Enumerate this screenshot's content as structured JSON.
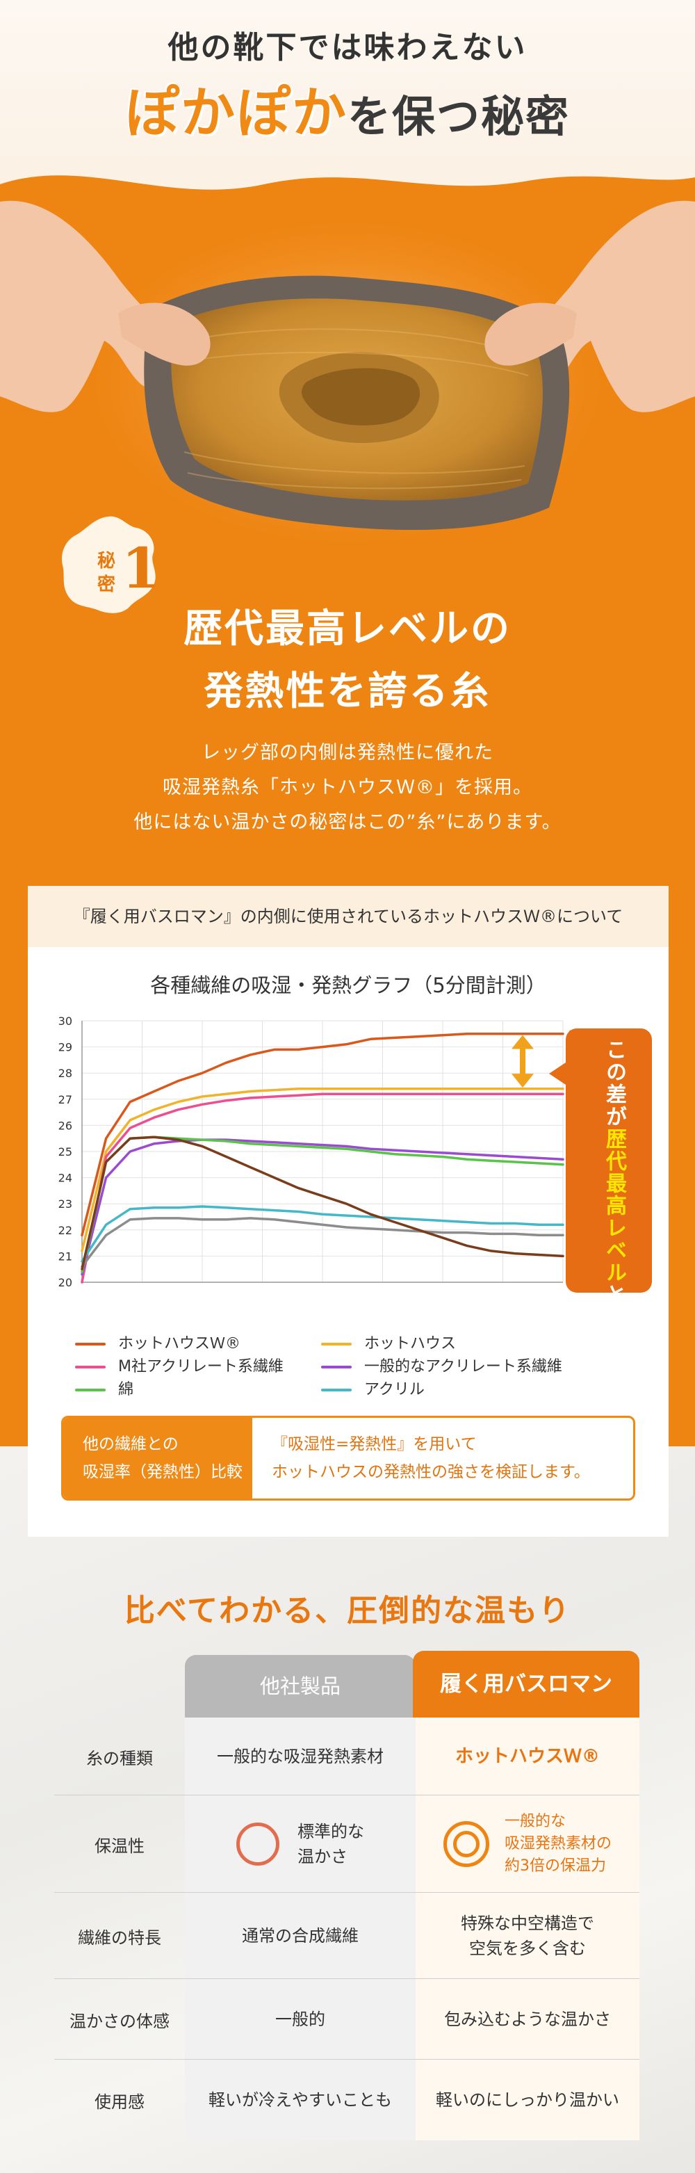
{
  "hero": {
    "subtitle": "他の靴下では味わえない",
    "title_accent": "ぽかぽか",
    "title_rest": "を保つ秘密"
  },
  "secret": {
    "label_line1": "秘",
    "label_line2": "密",
    "number": "1",
    "title_line1": "歴代最高レベルの",
    "title_line2": "発熱性を誇る糸",
    "desc_line1": "レッグ部の内側は発熱性に優れた",
    "desc_line2": "吸湿発熱糸「ホットハウスＷ®」を採用。",
    "desc_line3": "他にはない温かさの秘密はこの”糸”にあります。"
  },
  "card": {
    "header": "『履く用バスロマン』の内側に使用されているホットハウスＷ®について",
    "chart_title": "各種繊維の吸湿・発熱グラフ（5分間計測）",
    "callout_pre": "この差が",
    "callout_hl": "歴代最高レベル",
    "callout_post": "と言われる理由です！",
    "compare_label_line1": "他の繊維との",
    "compare_label_line2": "吸湿率（発熱性）比較",
    "compare_text_line1": "『吸湿性=発熱性』を用いて",
    "compare_text_line2": "ホットハウスの発熱性の強さを検証します。"
  },
  "chart_data": {
    "type": "line",
    "title": "各種繊維の吸湿・発熱グラフ（5分間計測）",
    "xlabel": "",
    "ylabel": "",
    "ylim": [
      20,
      30
    ],
    "yticks": [
      "30",
      "29",
      "28",
      "27",
      "26",
      "25",
      "24",
      "23",
      "22",
      "21",
      "20"
    ],
    "x": [
      0,
      1,
      2,
      3,
      4,
      5,
      6,
      7,
      8,
      9,
      10,
      11,
      12,
      13,
      14,
      15,
      16,
      17,
      18,
      19,
      20
    ],
    "series": [
      {
        "name": "ホットハウスＷ®",
        "color": "#d9581a",
        "end_label": "29.5",
        "values": [
          21.8,
          25.5,
          26.9,
          27.3,
          27.7,
          28.0,
          28.4,
          28.7,
          28.9,
          28.9,
          29.0,
          29.1,
          29.3,
          29.35,
          29.4,
          29.45,
          29.5,
          29.5,
          29.5,
          29.5,
          29.5
        ]
      },
      {
        "name": "ホットハウス",
        "color": "#f0b32a",
        "end_label": "27.4",
        "values": [
          21.2,
          25.0,
          26.2,
          26.6,
          26.9,
          27.1,
          27.2,
          27.3,
          27.35,
          27.4,
          27.4,
          27.4,
          27.4,
          27.4,
          27.4,
          27.4,
          27.4,
          27.4,
          27.4,
          27.4,
          27.4
        ]
      },
      {
        "name": "M社アクリレート系繊維",
        "color": "#ee4d8f",
        "end_label": "27.2",
        "values": [
          20.0,
          24.8,
          25.9,
          26.3,
          26.6,
          26.8,
          26.95,
          27.05,
          27.1,
          27.15,
          27.2,
          27.2,
          27.2,
          27.2,
          27.2,
          27.2,
          27.2,
          27.2,
          27.2,
          27.2,
          27.2
        ]
      },
      {
        "name": "一般的なアクリレート系繊維",
        "color": "#9a4bd0",
        "end_label": "24.7",
        "values": [
          20.3,
          24.0,
          25.0,
          25.3,
          25.4,
          25.45,
          25.45,
          25.4,
          25.35,
          25.3,
          25.25,
          25.2,
          25.1,
          25.05,
          25.0,
          24.95,
          24.9,
          24.85,
          24.8,
          24.75,
          24.7
        ]
      },
      {
        "name": "綿",
        "color": "#5ac34a",
        "end_label": "24.5",
        "values": [
          20.4,
          24.6,
          25.5,
          25.55,
          25.5,
          25.45,
          25.4,
          25.3,
          25.25,
          25.2,
          25.15,
          25.1,
          25.0,
          24.9,
          24.85,
          24.8,
          24.7,
          24.65,
          24.6,
          24.55,
          24.5
        ]
      },
      {
        "name": "アクリル",
        "color": "#44b8c8",
        "end_label": "22.2",
        "values": [
          20.8,
          22.2,
          22.8,
          22.85,
          22.85,
          22.9,
          22.85,
          22.8,
          22.75,
          22.7,
          22.6,
          22.55,
          22.5,
          22.45,
          22.4,
          22.35,
          22.3,
          22.25,
          22.25,
          22.2,
          22.2
        ]
      },
      {
        "name": "",
        "color": "#8c8c8c",
        "end_label": "21.8",
        "values": [
          20.6,
          21.8,
          22.4,
          22.45,
          22.45,
          22.4,
          22.4,
          22.45,
          22.4,
          22.3,
          22.2,
          22.1,
          22.05,
          22.0,
          21.95,
          21.9,
          21.9,
          21.85,
          21.85,
          21.8,
          21.8
        ]
      },
      {
        "name": "",
        "color": "#7a3d1c",
        "end_label": "21.0",
        "values": [
          20.5,
          24.6,
          25.5,
          25.55,
          25.45,
          25.2,
          24.8,
          24.4,
          24.0,
          23.6,
          23.3,
          23.0,
          22.6,
          22.3,
          22.0,
          21.7,
          21.4,
          21.2,
          21.1,
          21.05,
          21.0
        ]
      }
    ]
  },
  "legend": [
    {
      "label": "ホットハウスＷ®",
      "color": "#d9581a"
    },
    {
      "label": "ホットハウス",
      "color": "#f0b32a"
    },
    {
      "label": "M社アクリレート系繊維",
      "color": "#ee4d8f"
    },
    {
      "label": "一般的なアクリレート系繊維",
      "color": "#9a4bd0"
    },
    {
      "label": "綿",
      "color": "#5ac34a"
    },
    {
      "label": "アクリル",
      "color": "#44b8c8"
    }
  ],
  "comparison": {
    "title": "比べてわかる、圧倒的な温もり",
    "col_other": "他社製品",
    "col_ours": "履く用バスロマン",
    "rows": [
      {
        "label": "糸の種類",
        "other": "一般的な吸湿発熱素材",
        "ours": "ホットハウスＷ®"
      },
      {
        "label": "保温性",
        "other_line1": "標準的な",
        "other_line2": "温かさ",
        "ours_line1": "一般的な",
        "ours_line2": "吸湿発熱素材の",
        "ours_line3": "約3倍の保温力"
      },
      {
        "label": "繊維の特長",
        "other": "通常の合成繊維",
        "ours_line1": "特殊な中空構造で",
        "ours_line2": "空気を多く含む"
      },
      {
        "label": "温かさの体感",
        "other": "一般的",
        "ours": "包み込むような温かさ"
      },
      {
        "label": "使用感",
        "other": "軽いが冷えやすいことも",
        "ours": "軽いのにしっかり温かい"
      }
    ]
  },
  "colors": {
    "accent": "#ee8411",
    "accent_dark": "#e66d13",
    "gray_head": "#b8b8b8"
  }
}
